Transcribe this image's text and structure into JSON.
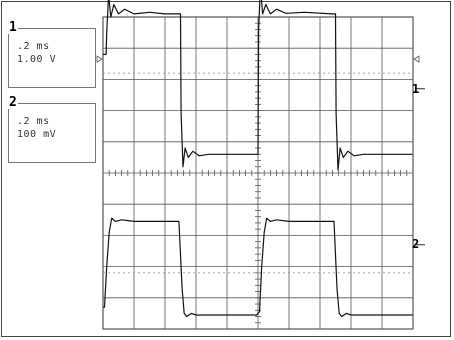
{
  "channels": [
    {
      "id": "1",
      "time_div": ".2 ms",
      "volt_div": "1.00 V",
      "marker": "1"
    },
    {
      "id": "2",
      "time_div": ".2 ms",
      "volt_div": "100 mV",
      "marker": "2"
    }
  ],
  "colors": {
    "trace": "#111111",
    "grid": "#555555",
    "background": "#ffffff"
  },
  "chart_data": {
    "type": "line",
    "grid": true,
    "x_divisions": 10,
    "y_divisions": 10,
    "series": [
      {
        "channel": "1",
        "x": [
          0.0,
          0.1,
          0.12,
          0.18,
          0.25,
          0.35,
          0.5,
          0.7,
          1.0,
          1.5,
          2.0,
          2.4,
          2.5,
          2.52,
          2.58,
          2.65,
          2.75,
          2.9,
          3.1,
          3.4,
          4.0,
          4.9,
          5.0,
          5.02,
          5.08,
          5.15,
          5.25,
          5.4,
          5.6,
          5.9,
          6.5,
          7.4,
          7.5,
          7.52,
          7.58,
          7.65,
          7.75,
          7.9,
          8.1,
          8.4,
          9.0,
          9.98
        ],
        "y": [
          8.8,
          8.8,
          9.5,
          10.7,
          10.0,
          10.4,
          10.1,
          10.25,
          10.1,
          10.15,
          10.1,
          10.1,
          10.1,
          6.9,
          5.2,
          5.8,
          5.5,
          5.7,
          5.55,
          5.6,
          5.6,
          5.6,
          5.6,
          9.6,
          11.0,
          10.1,
          10.4,
          10.1,
          10.25,
          10.12,
          10.15,
          10.1,
          10.1,
          6.9,
          5.1,
          5.8,
          5.5,
          5.7,
          5.55,
          5.6,
          5.6,
          5.6
        ]
      },
      {
        "channel": "2",
        "x": [
          0.0,
          0.05,
          0.12,
          0.2,
          0.28,
          0.4,
          0.6,
          1.0,
          1.5,
          2.0,
          2.45,
          2.55,
          2.62,
          2.7,
          2.85,
          3.0,
          3.5,
          4.0,
          4.5,
          4.95,
          5.05,
          5.12,
          5.2,
          5.28,
          5.4,
          5.6,
          6.0,
          6.5,
          7.0,
          7.45,
          7.55,
          7.62,
          7.7,
          7.85,
          8.0,
          8.5,
          9.0,
          9.98
        ],
        "y": [
          0.7,
          0.7,
          2.0,
          3.1,
          3.55,
          3.45,
          3.5,
          3.45,
          3.45,
          3.45,
          3.45,
          1.3,
          0.5,
          0.4,
          0.5,
          0.45,
          0.45,
          0.45,
          0.45,
          0.45,
          0.55,
          2.0,
          3.1,
          3.55,
          3.45,
          3.5,
          3.45,
          3.45,
          3.45,
          3.45,
          1.3,
          0.5,
          0.4,
          0.5,
          0.45,
          0.45,
          0.45,
          0.45
        ]
      }
    ]
  }
}
